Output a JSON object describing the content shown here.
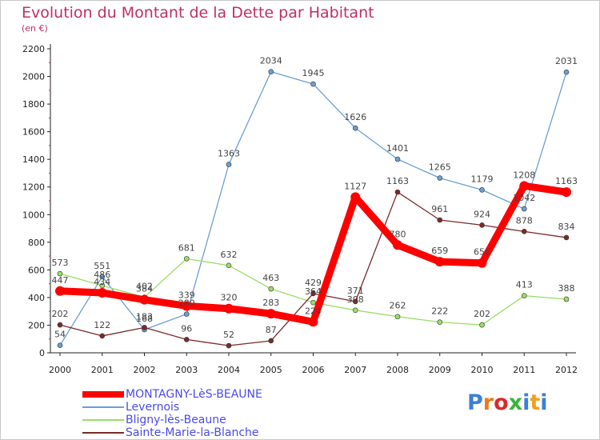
{
  "chart_data": {
    "type": "line",
    "title": "Evolution du Montant de la Dette par Habitant",
    "subtitle": "(en €)",
    "ylim": [
      0,
      2200
    ],
    "yticks": [
      0,
      200,
      400,
      600,
      800,
      1000,
      1200,
      1400,
      1600,
      1800,
      2000,
      2200
    ],
    "categories": [
      "2000",
      "2001",
      "2002",
      "2003",
      "2004",
      "2005",
      "2006",
      "2007",
      "2008",
      "2009",
      "2010",
      "2011",
      "2012"
    ],
    "grid": false,
    "legend_position": "bottom-left",
    "series": [
      {
        "name": "MONTAGNY-LèS-BEAUNE",
        "color": "#ff0000",
        "width": 9,
        "marker": 6,
        "values": [
          447,
          434,
          384,
          339,
          320,
          283,
          224,
          1127,
          780,
          659,
          650,
          1208,
          1163
        ],
        "labels": [
          "447",
          "434",
          "384",
          "339",
          "320",
          "283",
          "224",
          "1127",
          "780",
          "659",
          "650",
          "1208",
          "1163"
        ]
      },
      {
        "name": "Levernois",
        "color": "#6c9fd1",
        "width": 1.3,
        "marker": 3,
        "values": [
          54,
          551,
          168,
          280,
          1363,
          2034,
          1945,
          1626,
          1401,
          1265,
          1179,
          1042,
          2031
        ],
        "labels": [
          "54",
          "551",
          "168",
          "280",
          "1363",
          "2034",
          "1945",
          "1626",
          "1401",
          "1265",
          "1179",
          "1042",
          "2031"
        ]
      },
      {
        "name": "Bligny-lès-Beaune",
        "color": "#99dd66",
        "width": 1.3,
        "marker": 3,
        "values": [
          573,
          486,
          402,
          681,
          632,
          463,
          364,
          308,
          262,
          222,
          202,
          413,
          388
        ],
        "labels": [
          "573",
          "486",
          "402",
          "681",
          "632",
          "463",
          "364",
          "308",
          "262",
          "222",
          "202",
          "413",
          "388"
        ]
      },
      {
        "name": "Sainte-Marie-la-Blanche",
        "color": "#7a2a2a",
        "width": 1.3,
        "marker": 3,
        "values": [
          202,
          122,
          183,
          96,
          52,
          87,
          429,
          371,
          1163,
          961,
          924,
          878,
          834
        ],
        "labels": [
          "202",
          "122",
          "183",
          "96",
          "52",
          "87",
          "429",
          "371",
          "1163",
          "961",
          "924",
          "878",
          "834"
        ]
      }
    ]
  },
  "logo": {
    "letters": [
      "P",
      "r",
      "o",
      "x",
      "i",
      "t",
      "i"
    ],
    "colors": [
      "#3a7fd9",
      "#f07a1a",
      "#d82a2a",
      "#3ab53a",
      "#3a7fd9",
      "#f0a01a",
      "#3a7fd9"
    ]
  }
}
